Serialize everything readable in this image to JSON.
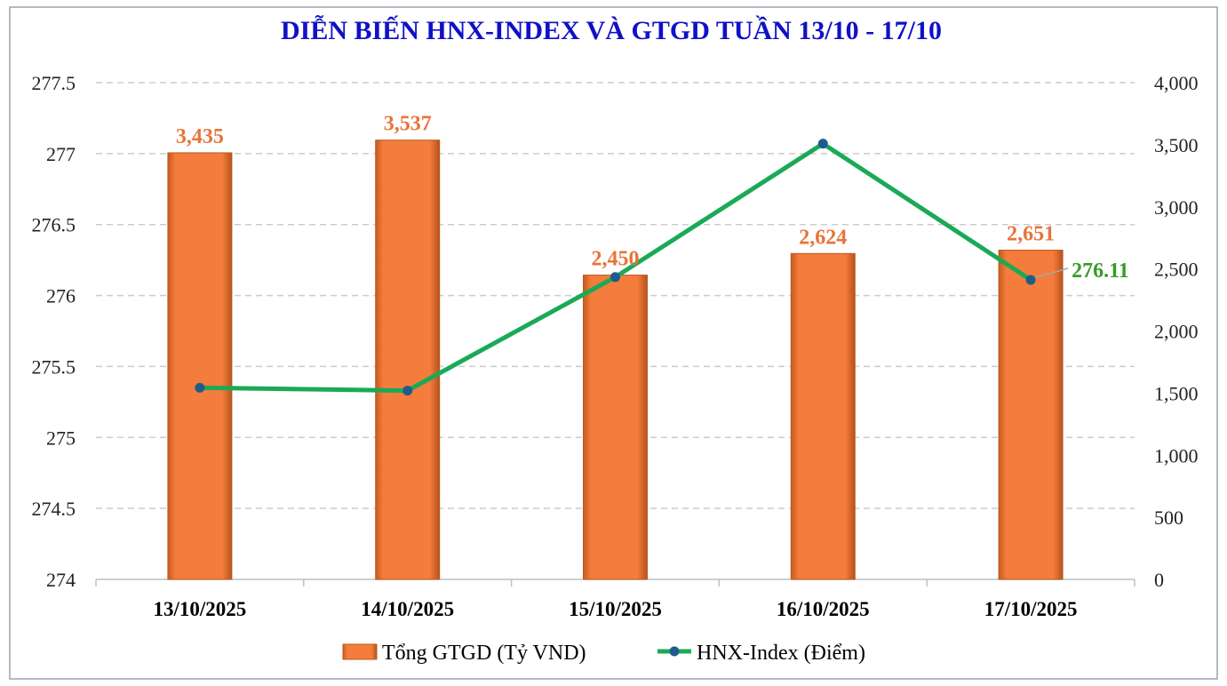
{
  "chart_data": {
    "type": "bar+line",
    "title": "DIỄN BIẾN HNX-INDEX VÀ GTGD TUẦN 13/10 - 17/10",
    "categories": [
      "13/10/2025",
      "14/10/2025",
      "15/10/2025",
      "16/10/2025",
      "17/10/2025"
    ],
    "series": [
      {
        "name": "Tổng GTGD (Tỷ VND)",
        "kind": "bar",
        "axis": "right",
        "values": [
          3435,
          3537,
          2450,
          2624,
          2651
        ],
        "labels": [
          "3,435",
          "3,537",
          "2,450",
          "2,624",
          "2,651"
        ]
      },
      {
        "name": "HNX-Index (Điểm)",
        "kind": "line",
        "axis": "left",
        "values": [
          275.35,
          275.33,
          276.13,
          277.07,
          276.11
        ],
        "last_label": "276.11"
      }
    ],
    "left_axis": {
      "min": 274,
      "max": 277.5,
      "step": 0.5,
      "ticks": [
        "274",
        "274.5",
        "275",
        "275.5",
        "276",
        "276.5",
        "277",
        "277.5"
      ]
    },
    "right_axis": {
      "min": 0,
      "max": 4000,
      "step": 500,
      "ticks": [
        "0",
        "500",
        "1,000",
        "1,500",
        "2,000",
        "2,500",
        "3,000",
        "3,500",
        "4,000"
      ]
    },
    "grid": true,
    "legend_position": "bottom"
  },
  "colors": {
    "title": "#1010c8",
    "bar_fill": "#f47c3c",
    "bar_edge": "#b85a1e",
    "bar_label": "#e8733a",
    "line": "#1aaa55",
    "marker": "#1f5c8c",
    "line_label": "#3a9a2a",
    "grid": "#cccccc",
    "border": "#9ea4ac",
    "axis": "#bfbfbf"
  }
}
